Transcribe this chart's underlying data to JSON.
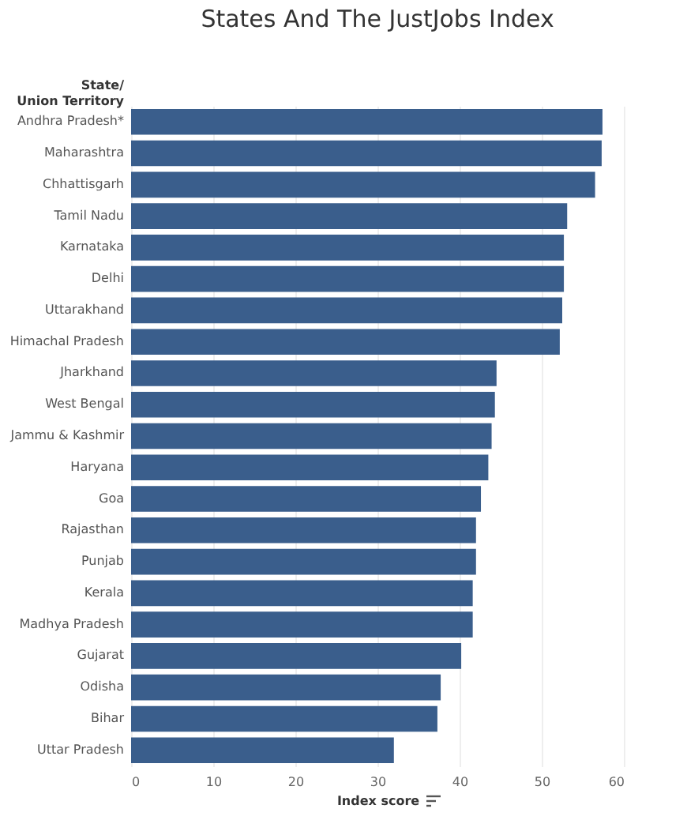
{
  "chart_data": {
    "type": "bar",
    "orientation": "horizontal",
    "title": "States And The JustJobs Index",
    "xlabel": "Index score",
    "ylabel": "State/ Union Territory",
    "categories": [
      "Andhra Pradesh*",
      "Maharashtra",
      "Chhattisgarh",
      "Tamil Nadu",
      "Karnataka",
      "Delhi",
      "Uttarakhand",
      "Himachal Pradesh",
      "Jharkhand",
      "West Bengal",
      "Jammu & Kashmir",
      "Haryana",
      "Goa",
      "Rajasthan",
      "Punjab",
      "Kerala",
      "Madhya Pradesh",
      "Gujarat",
      "Odisha",
      "Bihar",
      "Uttar Pradesh"
    ],
    "values": [
      57.4,
      57.3,
      56.5,
      53.1,
      52.7,
      52.7,
      52.5,
      52.2,
      44.5,
      44.3,
      43.9,
      43.5,
      42.6,
      42.0,
      42.0,
      41.6,
      41.6,
      40.2,
      37.7,
      37.3,
      32.0
    ],
    "color": "#3a5e8c",
    "xlim": [
      0,
      60
    ],
    "xticks": [
      0,
      10,
      20,
      30,
      40,
      50,
      60
    ],
    "grid": "x"
  }
}
